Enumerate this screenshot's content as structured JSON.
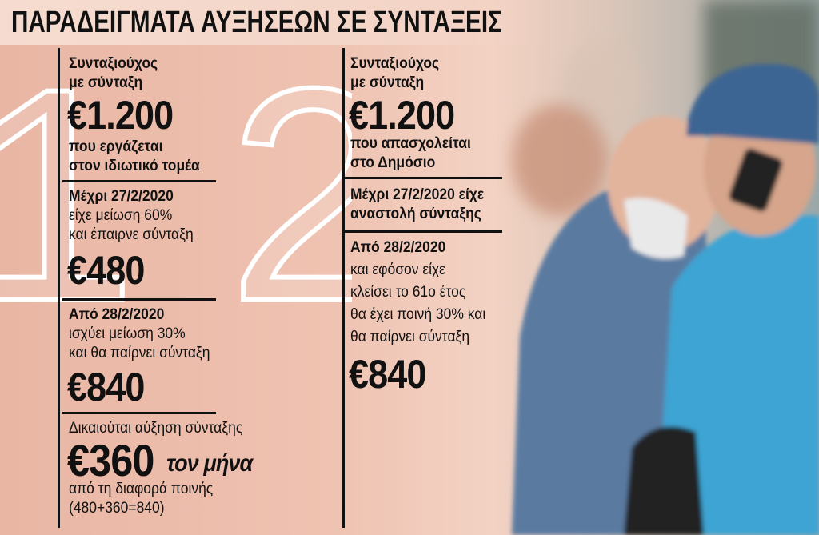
{
  "title": "ΠΑΡΑΔΕΙΓΜΑΤΑ ΑΥΞΗΣΕΩΝ ΣΕ ΣΥΝΤΑΞΕΙΣ",
  "columns": [
    {
      "number": "1",
      "sections": [
        {
          "lines": [
            "Συνταξιούχος",
            "με σύνταξη"
          ],
          "amount": "€1.200",
          "after": [
            "που εργάζεται",
            "στον ιδιωτικό τομέα"
          ]
        },
        {
          "heading": "Μέχρι 27/2/2020",
          "lines": [
            "είχε μείωση 60%",
            "και έπαιρνε σύνταξη"
          ],
          "amount": "€480"
        },
        {
          "heading": "Από 28/2/2020",
          "lines": [
            "ισχύει μείωση 30%",
            "και θα παίρνει σύνταξη"
          ],
          "amount": "€840"
        },
        {
          "lines": [
            "Δικαιούται αύξηση σύνταξης"
          ],
          "amount": "€360",
          "amount_suffix": "τον μήνα",
          "after": [
            "από τη διαφορά ποινής",
            "(480+360=840)"
          ]
        }
      ]
    },
    {
      "number": "2",
      "sections": [
        {
          "lines": [
            "Συνταξιούχος",
            "με σύνταξη"
          ],
          "amount": "€1.200",
          "after": [
            "που απασχολείται",
            "στο Δημόσιο"
          ]
        },
        {
          "heading": "Μέχρι 27/2/2020 είχε",
          "lines": [
            "αναστολή σύνταξης"
          ]
        },
        {
          "heading": "Από 28/2/2020",
          "lines": [
            "και εφόσον είχε",
            "κλείσει το 61ο έτος",
            "θα έχει ποινή 30% και",
            "θα παίρνει σύνταξη"
          ],
          "amount": "€840"
        }
      ]
    }
  ]
}
